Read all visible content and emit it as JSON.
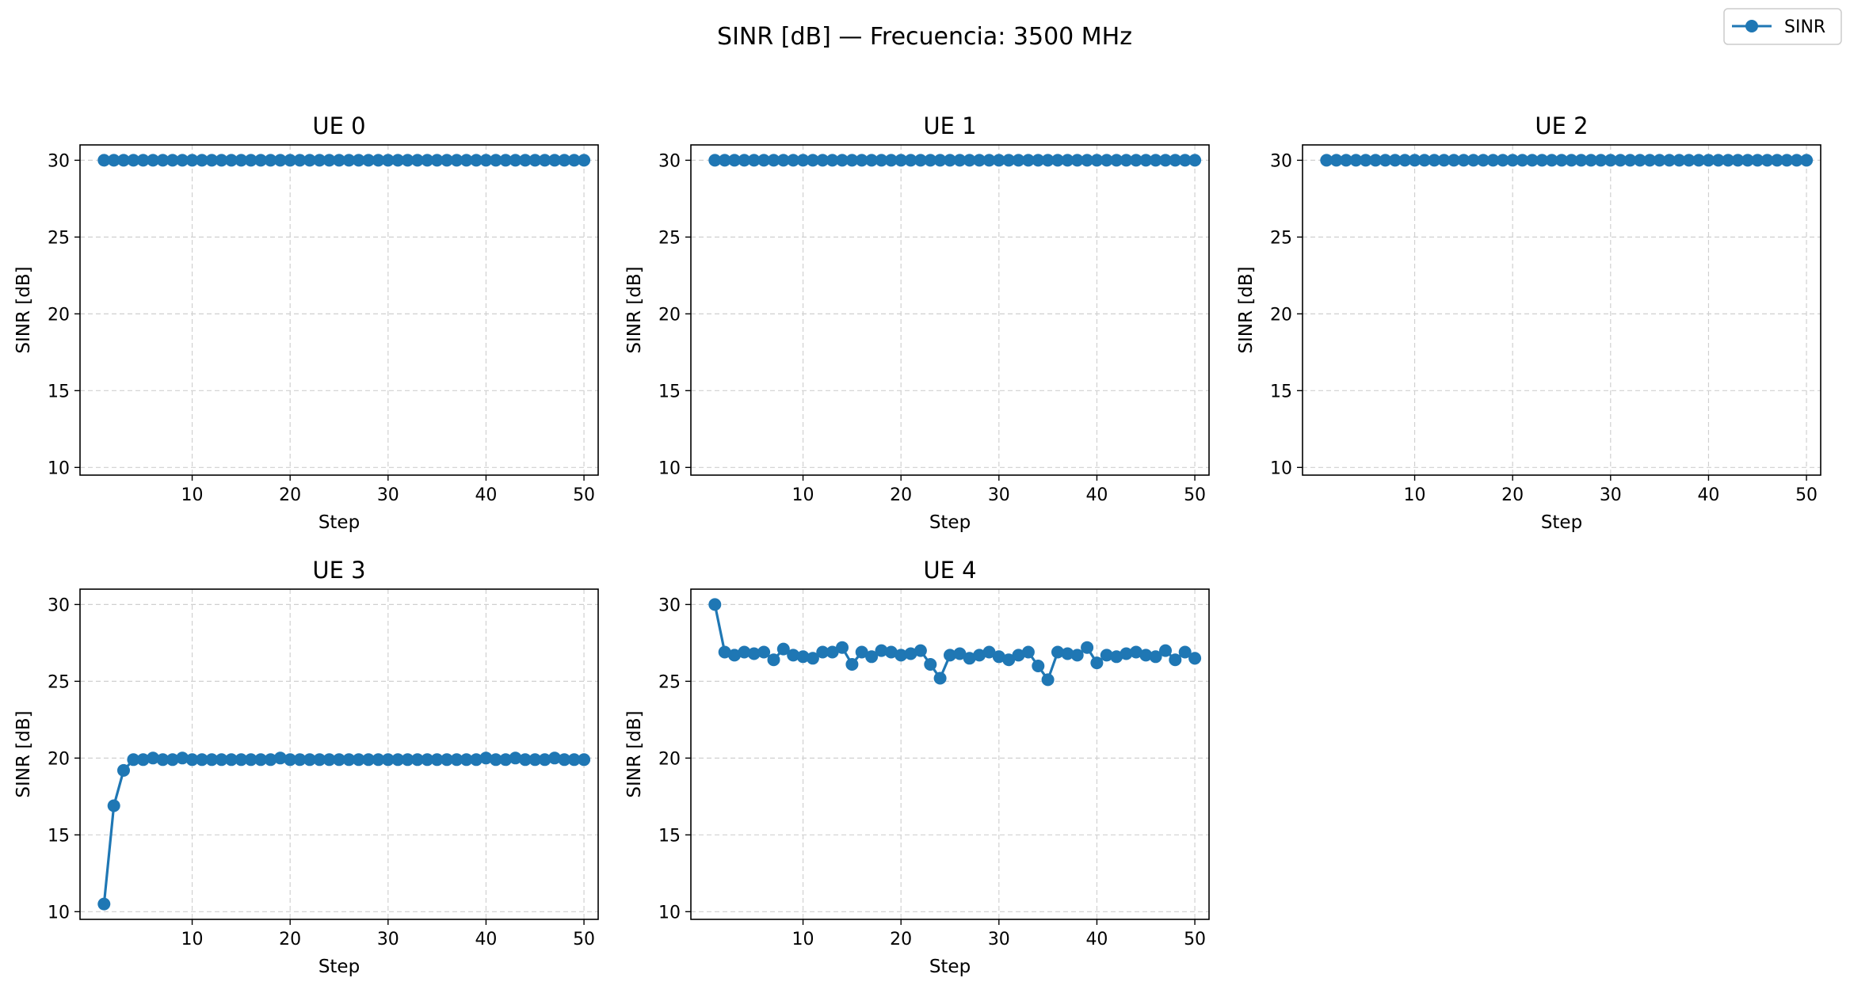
{
  "figure": {
    "title": "SINR [dB] — Frecuencia: 3500 MHz"
  },
  "legend": {
    "label": "SINR",
    "position": "top-right"
  },
  "colors": {
    "series": "#1f77b4",
    "grid": "#d0d0d0",
    "axis": "#000000"
  },
  "chart_data": [
    {
      "type": "line",
      "title": "UE 0",
      "xlabel": "Step",
      "ylabel": "SINR [dB]",
      "xlim": [
        -1.45,
        51.45
      ],
      "ylim": [
        9.5,
        31.0
      ],
      "xticks": [
        10,
        20,
        30,
        40,
        50
      ],
      "yticks": [
        10,
        15,
        20,
        25,
        30
      ],
      "grid": true,
      "series": [
        {
          "name": "SINR",
          "x": [
            1,
            2,
            3,
            4,
            5,
            6,
            7,
            8,
            9,
            10,
            11,
            12,
            13,
            14,
            15,
            16,
            17,
            18,
            19,
            20,
            21,
            22,
            23,
            24,
            25,
            26,
            27,
            28,
            29,
            30,
            31,
            32,
            33,
            34,
            35,
            36,
            37,
            38,
            39,
            40,
            41,
            42,
            43,
            44,
            45,
            46,
            47,
            48,
            49,
            50
          ],
          "y": [
            30,
            30,
            30,
            30,
            30,
            30,
            30,
            30,
            30,
            30,
            30,
            30,
            30,
            30,
            30,
            30,
            30,
            30,
            30,
            30,
            30,
            30,
            30,
            30,
            30,
            30,
            30,
            30,
            30,
            30,
            30,
            30,
            30,
            30,
            30,
            30,
            30,
            30,
            30,
            30,
            30,
            30,
            30,
            30,
            30,
            30,
            30,
            30,
            30,
            30
          ]
        }
      ]
    },
    {
      "type": "line",
      "title": "UE 1",
      "xlabel": "Step",
      "ylabel": "SINR [dB]",
      "xlim": [
        -1.45,
        51.45
      ],
      "ylim": [
        9.5,
        31.0
      ],
      "xticks": [
        10,
        20,
        30,
        40,
        50
      ],
      "yticks": [
        10,
        15,
        20,
        25,
        30
      ],
      "grid": true,
      "series": [
        {
          "name": "SINR",
          "x": [
            1,
            2,
            3,
            4,
            5,
            6,
            7,
            8,
            9,
            10,
            11,
            12,
            13,
            14,
            15,
            16,
            17,
            18,
            19,
            20,
            21,
            22,
            23,
            24,
            25,
            26,
            27,
            28,
            29,
            30,
            31,
            32,
            33,
            34,
            35,
            36,
            37,
            38,
            39,
            40,
            41,
            42,
            43,
            44,
            45,
            46,
            47,
            48,
            49,
            50
          ],
          "y": [
            30,
            30,
            30,
            30,
            30,
            30,
            30,
            30,
            30,
            30,
            30,
            30,
            30,
            30,
            30,
            30,
            30,
            30,
            30,
            30,
            30,
            30,
            30,
            30,
            30,
            30,
            30,
            30,
            30,
            30,
            30,
            30,
            30,
            30,
            30,
            30,
            30,
            30,
            30,
            30,
            30,
            30,
            30,
            30,
            30,
            30,
            30,
            30,
            30,
            30
          ]
        }
      ]
    },
    {
      "type": "line",
      "title": "UE 2",
      "xlabel": "Step",
      "ylabel": "SINR [dB]",
      "xlim": [
        -1.45,
        51.45
      ],
      "ylim": [
        9.5,
        31.0
      ],
      "xticks": [
        10,
        20,
        30,
        40,
        50
      ],
      "yticks": [
        10,
        15,
        20,
        25,
        30
      ],
      "grid": true,
      "series": [
        {
          "name": "SINR",
          "x": [
            1,
            2,
            3,
            4,
            5,
            6,
            7,
            8,
            9,
            10,
            11,
            12,
            13,
            14,
            15,
            16,
            17,
            18,
            19,
            20,
            21,
            22,
            23,
            24,
            25,
            26,
            27,
            28,
            29,
            30,
            31,
            32,
            33,
            34,
            35,
            36,
            37,
            38,
            39,
            40,
            41,
            42,
            43,
            44,
            45,
            46,
            47,
            48,
            49,
            50
          ],
          "y": [
            30,
            30,
            30,
            30,
            30,
            30,
            30,
            30,
            30,
            30,
            30,
            30,
            30,
            30,
            30,
            30,
            30,
            30,
            30,
            30,
            30,
            30,
            30,
            30,
            30,
            30,
            30,
            30,
            30,
            30,
            30,
            30,
            30,
            30,
            30,
            30,
            30,
            30,
            30,
            30,
            30,
            30,
            30,
            30,
            30,
            30,
            30,
            30,
            30,
            30
          ]
        }
      ]
    },
    {
      "type": "line",
      "title": "UE 3",
      "xlabel": "Step",
      "ylabel": "SINR [dB]",
      "xlim": [
        -1.45,
        51.45
      ],
      "ylim": [
        9.5,
        31.0
      ],
      "xticks": [
        10,
        20,
        30,
        40,
        50
      ],
      "yticks": [
        10,
        15,
        20,
        25,
        30
      ],
      "grid": true,
      "series": [
        {
          "name": "SINR",
          "x": [
            1,
            2,
            3,
            4,
            5,
            6,
            7,
            8,
            9,
            10,
            11,
            12,
            13,
            14,
            15,
            16,
            17,
            18,
            19,
            20,
            21,
            22,
            23,
            24,
            25,
            26,
            27,
            28,
            29,
            30,
            31,
            32,
            33,
            34,
            35,
            36,
            37,
            38,
            39,
            40,
            41,
            42,
            43,
            44,
            45,
            46,
            47,
            48,
            49,
            50
          ],
          "y": [
            10.5,
            16.9,
            19.2,
            19.9,
            19.9,
            20.0,
            19.9,
            19.9,
            20.0,
            19.9,
            19.9,
            19.9,
            19.9,
            19.9,
            19.9,
            19.9,
            19.9,
            19.9,
            20.0,
            19.9,
            19.9,
            19.9,
            19.9,
            19.9,
            19.9,
            19.9,
            19.9,
            19.9,
            19.9,
            19.9,
            19.9,
            19.9,
            19.9,
            19.9,
            19.9,
            19.9,
            19.9,
            19.9,
            19.9,
            20.0,
            19.9,
            19.9,
            20.0,
            19.9,
            19.9,
            19.9,
            20.0,
            19.9,
            19.9,
            19.9
          ]
        }
      ]
    },
    {
      "type": "line",
      "title": "UE 4",
      "xlabel": "Step",
      "ylabel": "SINR [dB]",
      "xlim": [
        -1.45,
        51.45
      ],
      "ylim": [
        9.5,
        31.0
      ],
      "xticks": [
        10,
        20,
        30,
        40,
        50
      ],
      "yticks": [
        10,
        15,
        20,
        25,
        30
      ],
      "grid": true,
      "series": [
        {
          "name": "SINR",
          "x": [
            1,
            2,
            3,
            4,
            5,
            6,
            7,
            8,
            9,
            10,
            11,
            12,
            13,
            14,
            15,
            16,
            17,
            18,
            19,
            20,
            21,
            22,
            23,
            24,
            25,
            26,
            27,
            28,
            29,
            30,
            31,
            32,
            33,
            34,
            35,
            36,
            37,
            38,
            39,
            40,
            41,
            42,
            43,
            44,
            45,
            46,
            47,
            48,
            49,
            50
          ],
          "y": [
            30.0,
            26.9,
            26.7,
            26.9,
            26.8,
            26.9,
            26.4,
            27.1,
            26.7,
            26.6,
            26.5,
            26.9,
            26.9,
            27.2,
            26.1,
            26.9,
            26.6,
            27.0,
            26.9,
            26.7,
            26.8,
            27.0,
            26.1,
            25.2,
            26.7,
            26.8,
            26.5,
            26.7,
            26.9,
            26.6,
            26.4,
            26.7,
            26.9,
            26.0,
            25.1,
            26.9,
            26.8,
            26.7,
            27.2,
            26.2,
            26.7,
            26.6,
            26.8,
            26.9,
            26.7,
            26.6,
            27.0,
            26.4,
            26.9,
            26.5
          ]
        }
      ]
    }
  ]
}
